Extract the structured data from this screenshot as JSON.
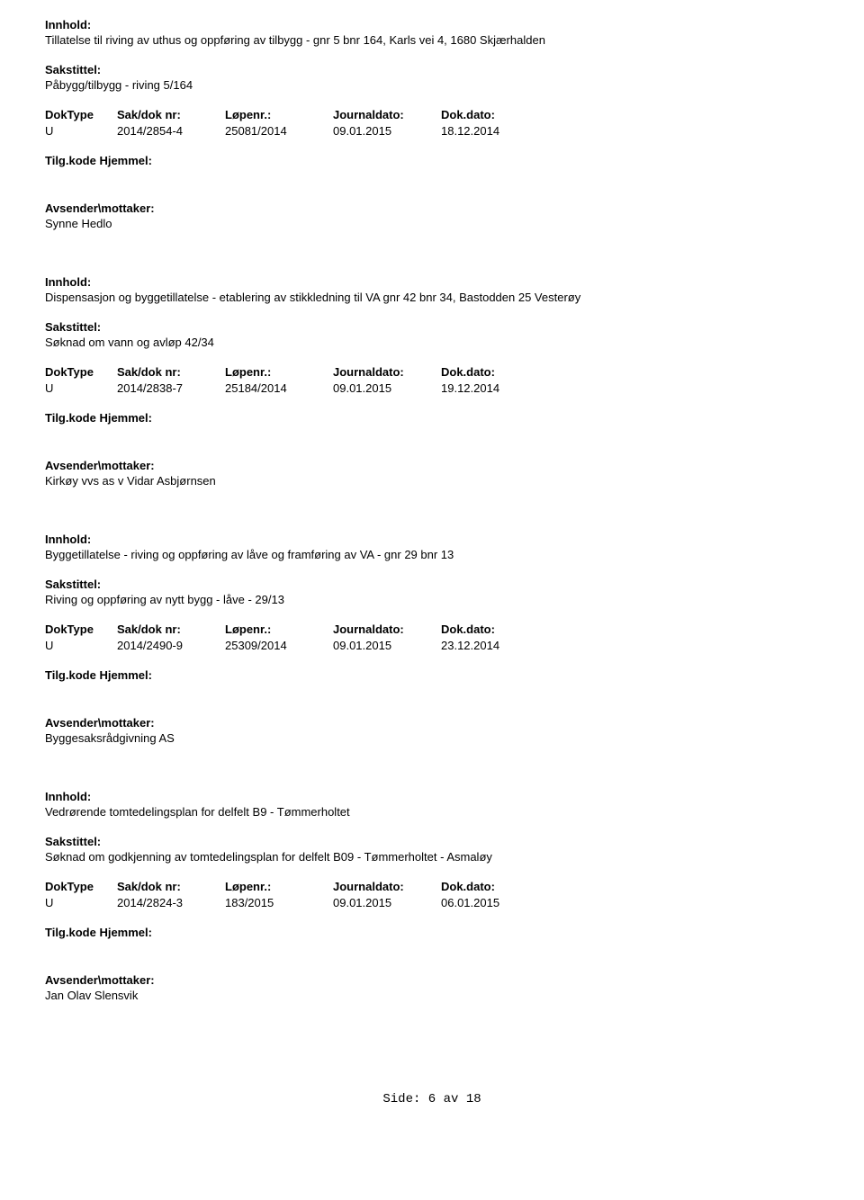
{
  "labels": {
    "innhold": "Innhold:",
    "sakstittel": "Sakstittel:",
    "doktype": "DokType",
    "sakdoknr": "Sak/dok nr:",
    "lopenr": "Løpenr.:",
    "journaldato": "Journaldato:",
    "dokdato": "Dok.dato:",
    "tilgkode": "Tilg.kode",
    "hjemmel": "Hjemmel:",
    "avsender": "Avsender\\mottaker:"
  },
  "records": [
    {
      "innhold": "Tillatelse til riving av uthus og oppføring av tilbygg - gnr 5 bnr 164, Karls vei 4, 1680 Skjærhalden",
      "sakstittel": "Påbygg/tilbygg - riving 5/164",
      "doktype": "U",
      "sakdoknr": "2014/2854-4",
      "lopenr": "25081/2014",
      "journaldato": "09.01.2015",
      "dokdato": "18.12.2014",
      "avsender": "Synne Hedlo"
    },
    {
      "innhold": "Dispensasjon og byggetillatelse  - etablering av stikkledning til VA gnr 42 bnr 34, Bastodden 25 Vesterøy",
      "sakstittel": "Søknad om vann og avløp 42/34",
      "doktype": "U",
      "sakdoknr": "2014/2838-7",
      "lopenr": "25184/2014",
      "journaldato": "09.01.2015",
      "dokdato": "19.12.2014",
      "avsender": "Kirkøy vvs as v Vidar Asbjørnsen"
    },
    {
      "innhold": "Byggetillatelse - riving og oppføring av låve og framføring av VA - gnr 29 bnr 13",
      "sakstittel": "Riving og oppføring av nytt bygg - låve - 29/13",
      "doktype": "U",
      "sakdoknr": "2014/2490-9",
      "lopenr": "25309/2014",
      "journaldato": "09.01.2015",
      "dokdato": "23.12.2014",
      "avsender": "Byggesaksrådgivning AS"
    },
    {
      "innhold": "Vedrørende tomtedelingsplan for delfelt B9 - Tømmerholtet",
      "sakstittel": "Søknad om godkjenning av tomtedelingsplan for delfelt B09 - Tømmerholtet - Asmaløy",
      "doktype": "U",
      "sakdoknr": "2014/2824-3",
      "lopenr": "183/2015",
      "journaldato": "09.01.2015",
      "dokdato": "06.01.2015",
      "avsender": "Jan Olav Slensvik"
    }
  ],
  "footer": {
    "prefix": "Side:",
    "page": "6",
    "separator": "av",
    "total": "18"
  }
}
